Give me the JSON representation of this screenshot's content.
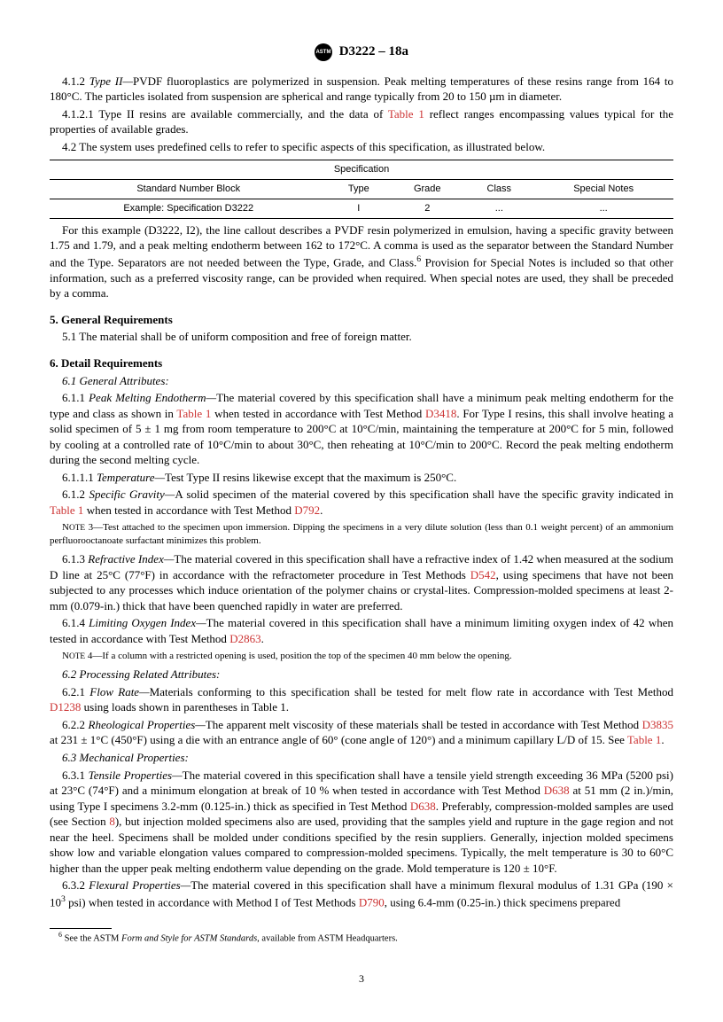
{
  "header": {
    "designation": "D3222 – 18a"
  },
  "p412": {
    "label": "4.1.2 ",
    "title": "Type II—",
    "body": "PVDF fluoroplastics are polymerized in suspension. Peak melting temperatures of these resins range from 164 to 180°C. The particles isolated from suspension are spherical and range typically from 20 to 150 µm in diameter."
  },
  "p4121": {
    "label": "4.1.2.1 Type II resins are available commercially, and the data of ",
    "link": "Table 1",
    "tail": " reflect ranges encompassing values typical for the properties of available grades."
  },
  "p42": {
    "text": "4.2 The system uses predefined cells to refer to specific aspects of this specification, as illustrated below."
  },
  "table": {
    "header_span": "Specification",
    "cols": [
      "Standard Number Block",
      "Type",
      "Grade",
      "Class",
      "Special Notes"
    ],
    "row_label": "Example: Specification D3222",
    "row": [
      "I",
      "2",
      "...",
      "..."
    ]
  },
  "callout": {
    "lead": "For this example (D3222, I2), the line callout describes a PVDF resin polymerized in emulsion, having a specific gravity between 1.75 and 1.79, and a peak melting endotherm between 162 to 172°C. A comma is used as the separator between the Standard Number and the Type. Separators are not needed between the Type, Grade, and Class.",
    "sup": "6",
    "tail": " Provision for Special Notes is included so that other information, such as a preferred viscosity range, can be provided when required. When special notes are used, they shall be preceded by a comma."
  },
  "s5": {
    "head": "5. General Requirements",
    "p51": "5.1 The material shall be of uniform composition and free of foreign matter."
  },
  "s6": {
    "head": "6. Detail Requirements",
    "p61": "6.1 General Attributes:",
    "p611": {
      "label": "6.1.1 ",
      "title": "Peak Melting Endotherm—",
      "body1": "The material covered by this specification shall have a minimum peak melting endotherm for the type and class as shown in ",
      "link1": "Table 1",
      "body2": " when tested in accordance with Test Method ",
      "link2": "D3418",
      "body3": ". For Type I resins, this shall involve heating a solid specimen of 5 ± 1 mg from room temperature to 200°C at 10°C/min, maintaining the temperature at 200°C for 5 min, followed by cooling at a controlled rate of 10°C/min to about 30°C, then reheating at 10°C/min to 200°C. Record the peak melting endotherm during the second melting cycle."
    },
    "p6111": {
      "label": "6.1.1.1 ",
      "title": "Temperature—",
      "body": "Test Type II resins likewise except that the maximum is 250°C."
    },
    "p612": {
      "label": "6.1.2 ",
      "title": "Specific Gravity—",
      "body1": "A solid specimen of the material covered by this specification shall have the specific gravity indicated in ",
      "link1": "Table 1",
      "body2": " when tested in accordance with Test Method ",
      "link2": "D792",
      "body3": "."
    },
    "note3": "NOTE 3—Test attached to the specimen upon immersion. Dipping the specimens in a very dilute solution (less than 0.1 weight percent) of an ammonium perfluorooctanoate surfactant minimizes this problem.",
    "p613": {
      "label": "6.1.3 ",
      "title": "Refractive Index—",
      "body1": "The material covered in this specification shall have a refractive index of 1.42 when measured at the sodium D line at 25°C (77°F) in accordance with the refractometer procedure in Test Methods ",
      "link": "D542",
      "body2": ", using specimens that have not been subjected to any processes which induce orientation of the polymer chains or crystal-lites. Compression-molded specimens at least 2-mm (0.079-in.) thick that have been quenched rapidly in water are preferred."
    },
    "p614": {
      "label": "6.1.4 ",
      "title": "Limiting Oxygen Index—",
      "body1": "The material covered in this specification shall have a minimum limiting oxygen index of 42 when tested in accordance with Test Method ",
      "link": "D2863",
      "body2": "."
    },
    "note4": "NOTE 4—If a column with a restricted opening is used, position the top of the specimen 40 mm below the opening.",
    "p62": "6.2 Processing Related Attributes:",
    "p621": {
      "label": "6.2.1 ",
      "title": "Flow Rate—",
      "body1": "Materials conforming to this specification shall be tested for melt flow rate in accordance with Test Method ",
      "link": "D1238",
      "body2": " using loads shown in parentheses in Table 1."
    },
    "p622": {
      "label": "6.2.2 ",
      "title": "Rheological Properties—",
      "body1": "The apparent melt viscosity of these materials shall be tested in accordance with Test Method ",
      "link1": "D3835",
      "body2": " at 231 ± 1°C (450°F) using a die with an entrance angle of 60° (cone angle of 120°) and a minimum capillary L/D of 15. See ",
      "link2": "Table 1",
      "body3": "."
    },
    "p63": "6.3 Mechanical Properties:",
    "p631": {
      "label": "6.3.1 ",
      "title": "Tensile Properties—",
      "body1": "The material covered in this specification shall have a tensile yield strength exceeding 36 MPa (5200 psi) at 23°C (74°F) and a minimum elongation at break of 10 % when tested in accordance with Test Method ",
      "link1": "D638",
      "body2": " at 51 mm (2 in.)/min, using Type I specimens 3.2-mm (0.125-in.) thick as specified in Test Method ",
      "link2": "D638",
      "body3": ". Preferably, compression-molded samples are used (see Section ",
      "link3": "8",
      "body4": "), but injection molded specimens also are used, providing that the samples yield and rupture in the gage region and not near the heel. Specimens shall be molded under conditions specified by the resin suppliers. Generally, injection molded specimens show low and variable elongation values compared to compression-molded specimens. Typically, the melt temperature is 30 to 60°C higher than the upper peak melting endotherm value depending on the grade. Mold temperature is 120 ± 10°F."
    },
    "p632": {
      "label": "6.3.2 ",
      "title": "Flexural Properties—",
      "body1": "The material covered in this specification shall have a minimum flexural modulus of 1.31 GPa (190 × 10",
      "sup": "3",
      "body2": " psi) when tested in accordance with Method I of Test Methods ",
      "link": "D790",
      "body3": ", using 6.4-mm (0.25-in.) thick specimens prepared"
    }
  },
  "footnote": {
    "sup": "6",
    "text": " See the ASTM ",
    "italic": "Form and Style for ASTM Standards",
    "tail": ", available from ASTM Headquarters."
  },
  "page": "3"
}
